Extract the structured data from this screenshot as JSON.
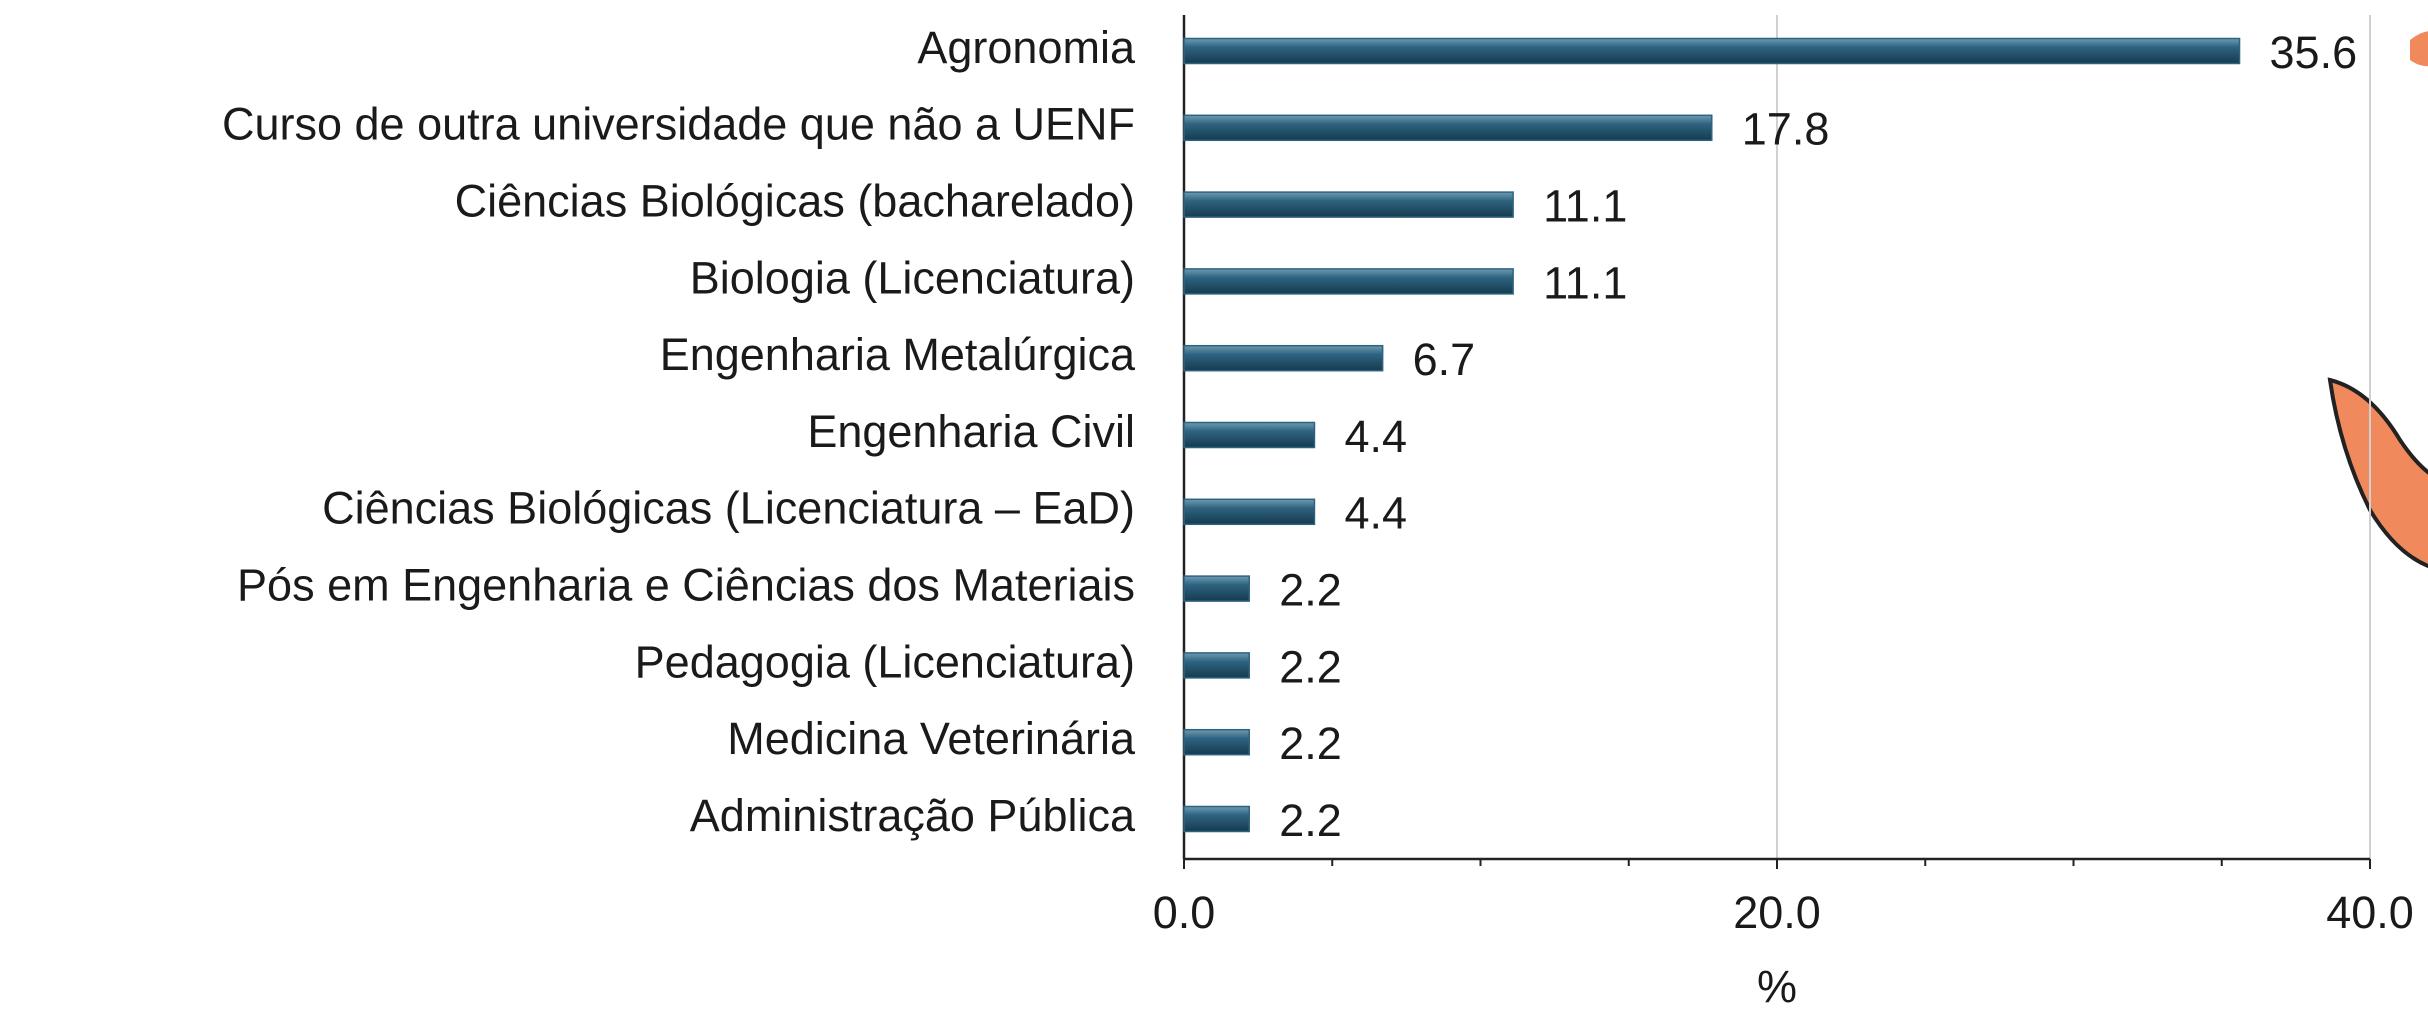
{
  "chart_data": {
    "type": "bar",
    "orientation": "horizontal",
    "categories": [
      "Agronomia",
      "Curso de outra universidade que não a UENF",
      "Ciências Biológicas (bacharelado)",
      "Biologia (Licenciatura)",
      "Engenharia Metalúrgica",
      "Engenharia Civil",
      "Ciências Biológicas (Licenciatura – EaD)",
      "Pós em Engenharia e Ciências dos Materiais",
      "Pedagogia (Licenciatura)",
      "Medicina Veterinária",
      "Administração Pública"
    ],
    "values": [
      35.6,
      17.8,
      11.1,
      11.1,
      6.7,
      4.4,
      4.4,
      2.2,
      2.2,
      2.2,
      2.2
    ],
    "color": "#2e6380",
    "xlabel": "%",
    "xlim": [
      0,
      40
    ],
    "xticks": [
      {
        "value": 0,
        "label": "0.0"
      },
      {
        "value": 20,
        "label": "20.0"
      },
      {
        "value": 40,
        "label": "40.0"
      }
    ],
    "minor_xticks": [
      5,
      10,
      15,
      25,
      30,
      35
    ],
    "grid": true
  }
}
